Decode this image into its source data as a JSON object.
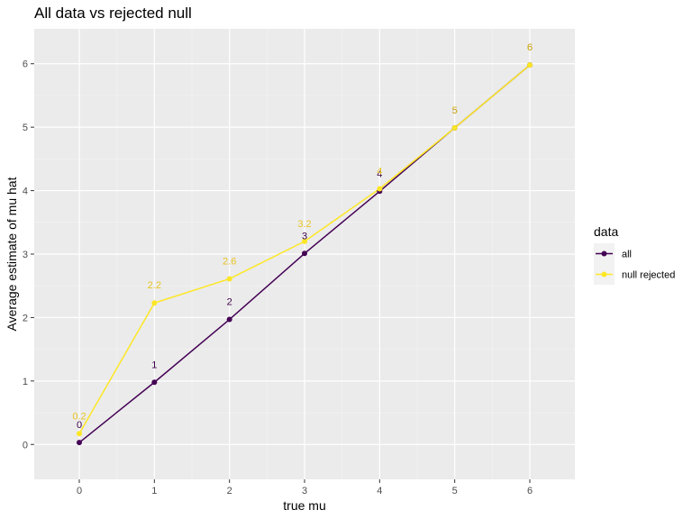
{
  "chart_data": {
    "type": "line",
    "title": "All data vs rejected null",
    "xlabel": "true mu",
    "ylabel": "Average estimate of mu hat",
    "xlim": [
      -0.6,
      6.6
    ],
    "ylim": [
      -0.55,
      6.55
    ],
    "x_ticks": [
      0,
      1,
      2,
      3,
      4,
      5,
      6
    ],
    "y_ticks": [
      0,
      1,
      2,
      3,
      4,
      5,
      6
    ],
    "grid": true,
    "legend": {
      "title": "data",
      "placement": "right"
    },
    "series": [
      {
        "name": "all",
        "color": "#440154",
        "label_color": "#3a0148",
        "x": [
          0,
          1,
          2,
          3,
          4,
          5,
          6
        ],
        "y": [
          0.03,
          0.98,
          1.97,
          3.01,
          3.99,
          4.99,
          5.98
        ],
        "labels": [
          "0",
          "1",
          "2",
          "3",
          "4",
          "5",
          "6"
        ]
      },
      {
        "name": "null rejected",
        "color": "#fde725",
        "label_color": "#e8c420",
        "x": [
          0,
          1,
          2,
          3,
          4,
          5,
          6
        ],
        "y": [
          0.17,
          2.23,
          2.61,
          3.2,
          4.03,
          4.99,
          5.98
        ],
        "labels": [
          "0.2",
          "2.2",
          "2.6",
          "3.2",
          "4",
          "5",
          "6"
        ]
      }
    ]
  }
}
